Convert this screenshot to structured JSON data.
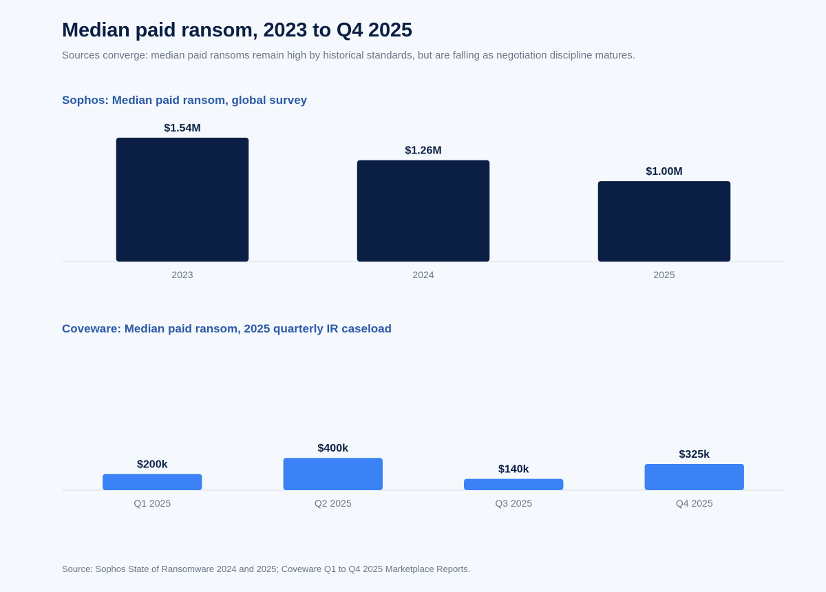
{
  "title": "Median paid ransom, 2023 to Q4 2025",
  "subtitle": "Sources converge: median paid ransoms remain high by historical standards, but are falling as negotiation discipline matures.",
  "footnote": "Source: Sophos State of Ransomware 2024 and 2025; Coveware Q1 to Q4 2025 Marketplace Reports.",
  "colors": {
    "sophos_bar": "#0b1f44",
    "coveware_bar": "#3b82f6",
    "baseline": "#e3e8ee"
  },
  "chart_data": [
    {
      "type": "bar",
      "title": "Sophos: Median paid ransom, global survey",
      "categories": [
        "2023",
        "2024",
        "2025"
      ],
      "values": [
        1.54,
        1.26,
        1.0
      ],
      "value_labels": [
        "$1.54M",
        "$1.26M",
        "$1.00M"
      ],
      "unit": "USD millions",
      "ylim": [
        0,
        1.54
      ],
      "xlabel": "",
      "ylabel": "",
      "grid": false
    },
    {
      "type": "bar",
      "title": "Coveware: Median paid ransom, 2025 quarterly IR caseload",
      "categories": [
        "Q1 2025",
        "Q2 2025",
        "Q3 2025",
        "Q4 2025"
      ],
      "values": [
        200,
        400,
        140,
        325
      ],
      "value_labels": [
        "$200k",
        "$400k",
        "$140k",
        "$325k"
      ],
      "unit": "USD thousands",
      "ylim": [
        0,
        1540
      ],
      "xlabel": "",
      "ylabel": "",
      "grid": false
    }
  ]
}
